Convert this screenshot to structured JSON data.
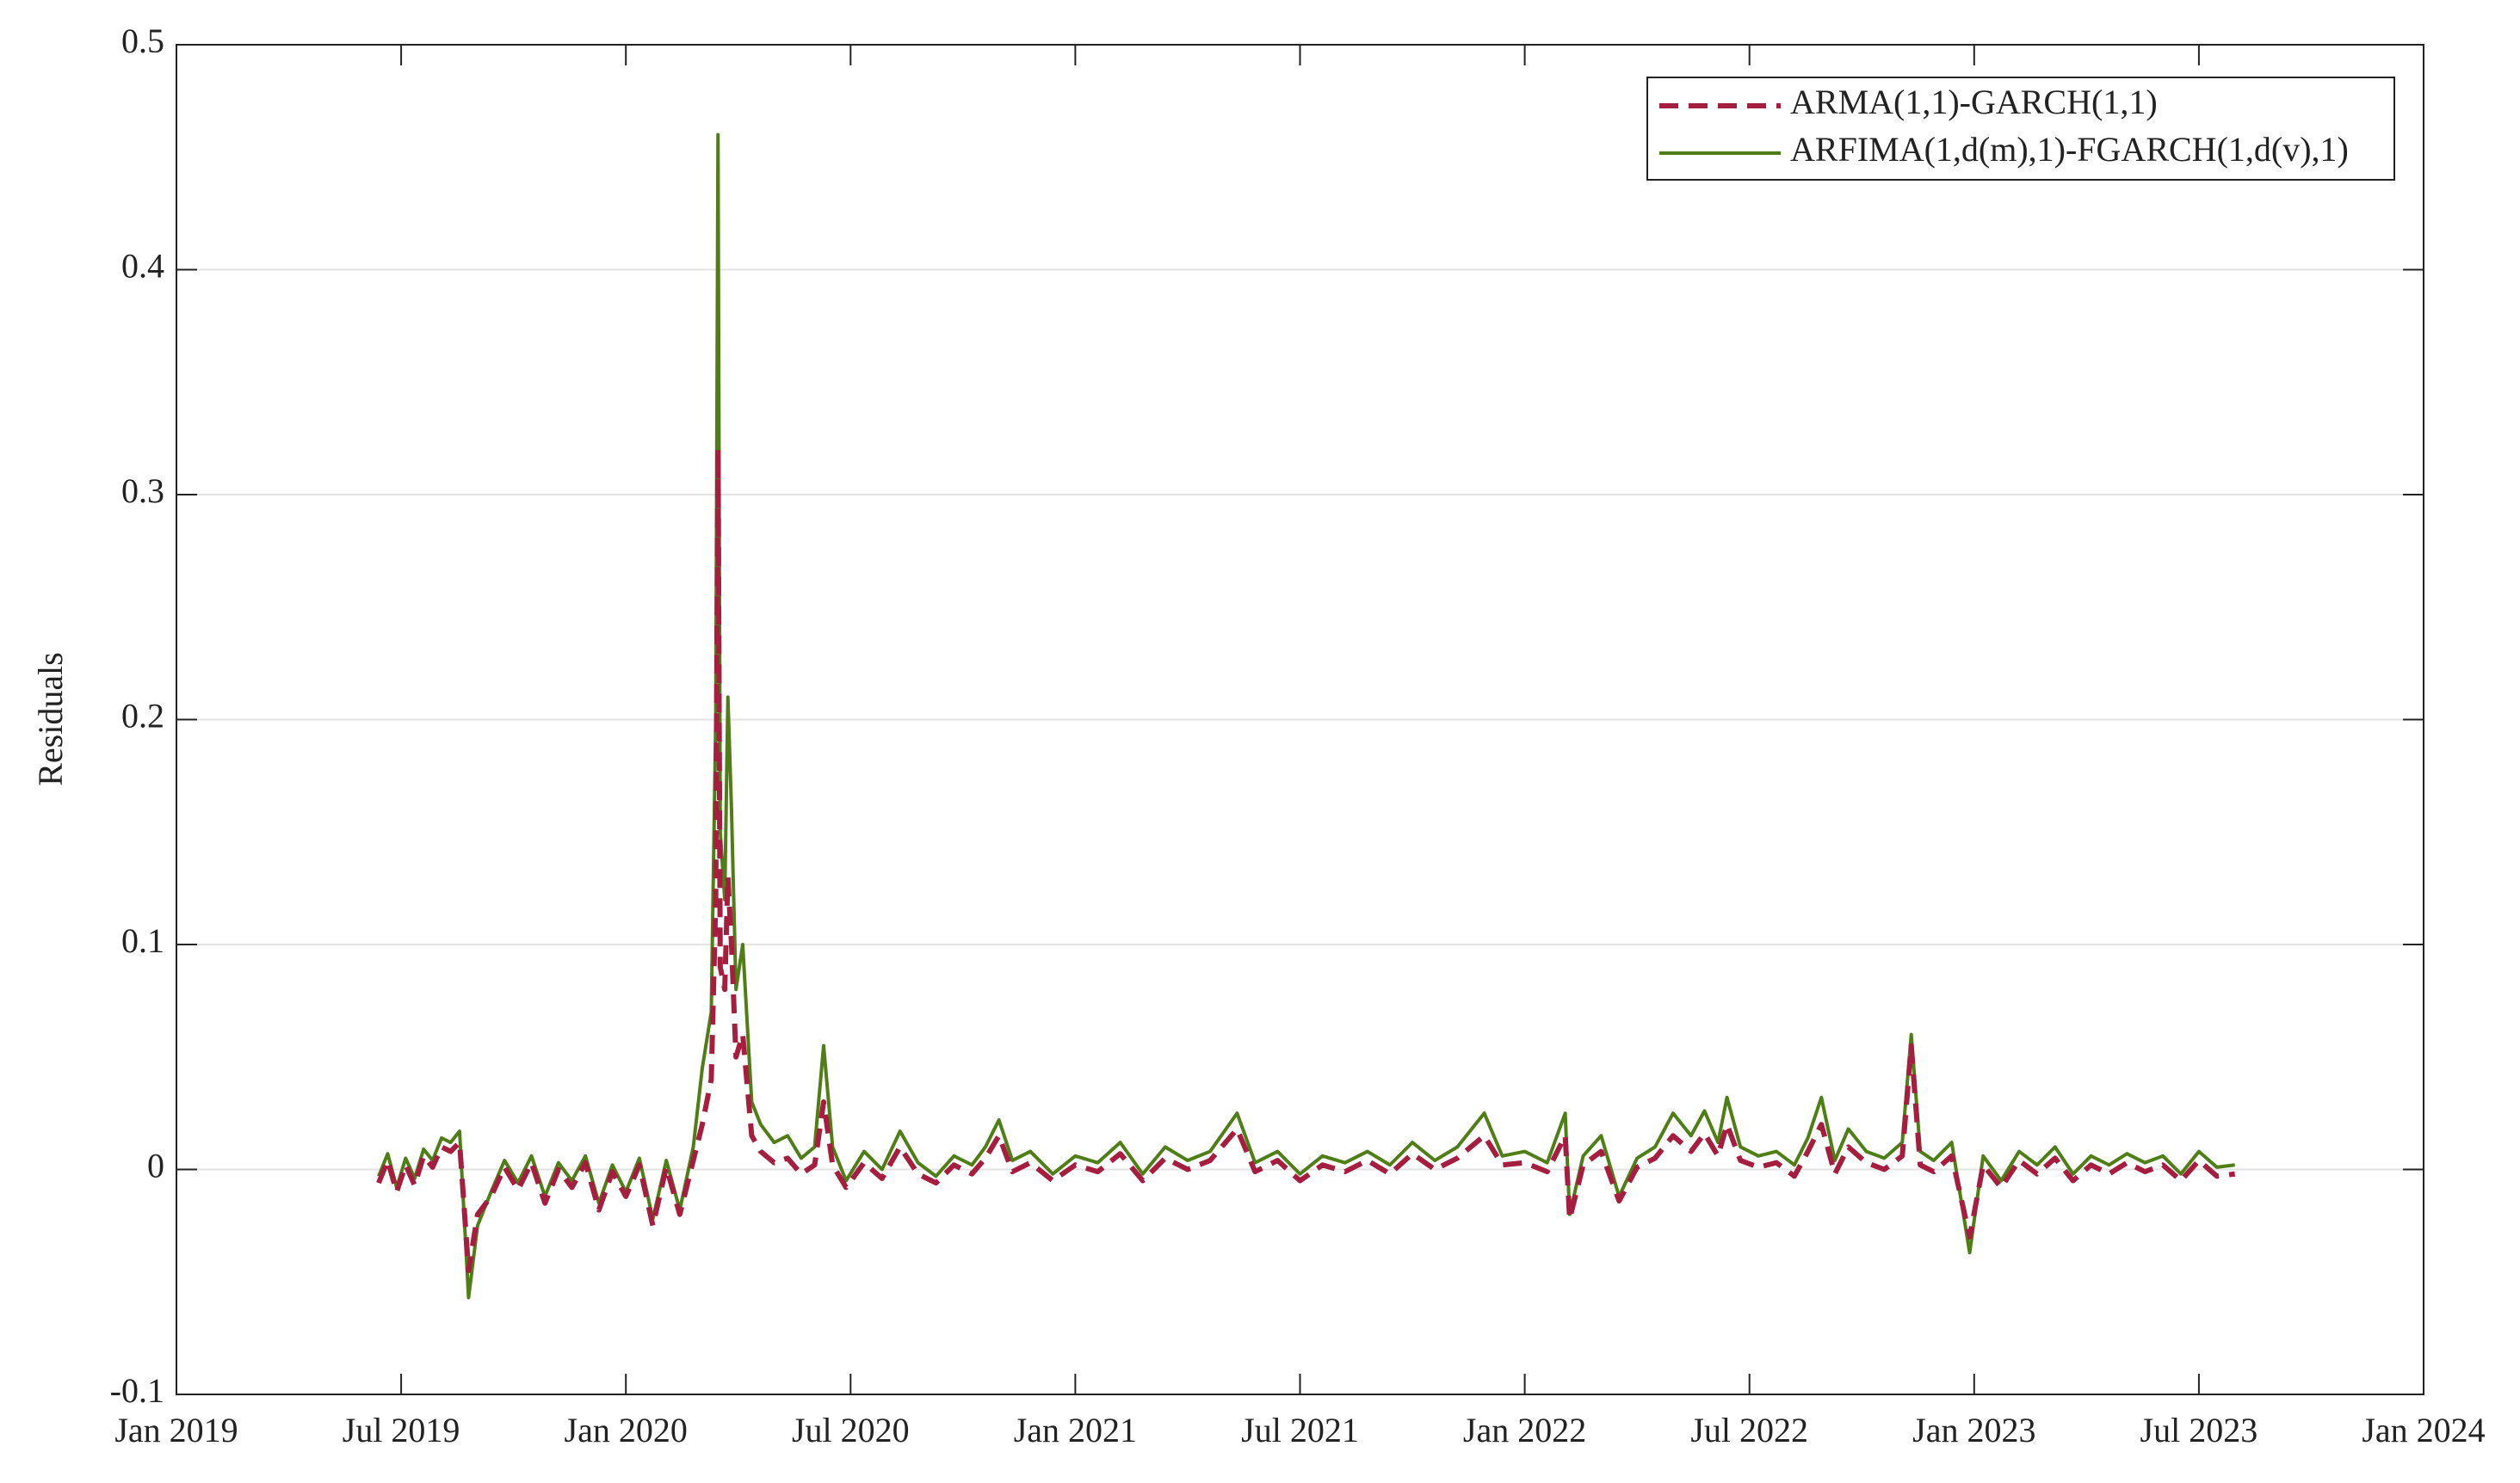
{
  "chart_data": {
    "type": "line",
    "ylabel": "Residuals",
    "xlim": [
      2019,
      2024
    ],
    "xticks": [
      {
        "value": 2019,
        "label": "Jan 2019"
      },
      {
        "value": 2019.5,
        "label": "Jul 2019"
      },
      {
        "value": 2020,
        "label": "Jan 2020"
      },
      {
        "value": 2020.5,
        "label": "Jul 2020"
      },
      {
        "value": 2021,
        "label": "Jan 2021"
      },
      {
        "value": 2021.5,
        "label": "Jul 2021"
      },
      {
        "value": 2022,
        "label": "Jan 2022"
      },
      {
        "value": 2022.5,
        "label": "Jul 2022"
      },
      {
        "value": 2023,
        "label": "Jan 2023"
      },
      {
        "value": 2023.5,
        "label": "Jul 2023"
      },
      {
        "value": 2024,
        "label": "Jan 2024"
      }
    ],
    "ylim": [
      -0.1,
      0.5
    ],
    "yticks": [
      -0.1,
      0,
      0.1,
      0.2,
      0.3,
      0.4,
      0.5
    ],
    "grid": true,
    "legend": "upper right",
    "x": [
      2019.45,
      2019.47,
      2019.49,
      2019.51,
      2019.53,
      2019.55,
      2019.57,
      2019.59,
      2019.61,
      2019.63,
      2019.65,
      2019.67,
      2019.7,
      2019.73,
      2019.76,
      2019.79,
      2019.82,
      2019.85,
      2019.88,
      2019.91,
      2019.94,
      2019.97,
      2020.0,
      2020.03,
      2020.06,
      2020.09,
      2020.12,
      2020.15,
      2020.17,
      2020.19,
      2020.2,
      2020.205,
      2020.21,
      2020.22,
      2020.227,
      2020.235,
      2020.245,
      2020.26,
      2020.28,
      2020.3,
      2020.33,
      2020.36,
      2020.39,
      2020.42,
      2020.44,
      2020.46,
      2020.49,
      2020.53,
      2020.57,
      2020.61,
      2020.65,
      2020.69,
      2020.73,
      2020.77,
      2020.8,
      2020.83,
      2020.86,
      2020.9,
      2020.95,
      2021.0,
      2021.05,
      2021.1,
      2021.15,
      2021.2,
      2021.25,
      2021.3,
      2021.36,
      2021.4,
      2021.45,
      2021.5,
      2021.55,
      2021.6,
      2021.65,
      2021.7,
      2021.75,
      2021.8,
      2021.85,
      2021.91,
      2021.95,
      2022.0,
      2022.05,
      2022.09,
      2022.1,
      2022.13,
      2022.17,
      2022.21,
      2022.25,
      2022.29,
      2022.33,
      2022.37,
      2022.4,
      2022.43,
      2022.45,
      2022.48,
      2022.52,
      2022.56,
      2022.6,
      2022.63,
      2022.66,
      2022.69,
      2022.72,
      2022.76,
      2022.8,
      2022.84,
      2022.86,
      2022.88,
      2022.91,
      2022.95,
      2022.99,
      2023.02,
      2023.06,
      2023.1,
      2023.14,
      2023.18,
      2023.22,
      2023.26,
      2023.3,
      2023.34,
      2023.38,
      2023.42,
      2023.46,
      2023.5,
      2023.54,
      2023.58
    ],
    "series": [
      {
        "name": "ARMA(1,1)-GARCH(1,1)",
        "color": "#a51d3f",
        "dash": true,
        "values": [
          -0.006,
          0.004,
          -0.01,
          0.002,
          -0.007,
          0.006,
          0.001,
          0.01,
          0.008,
          0.012,
          -0.045,
          -0.02,
          -0.012,
          0.001,
          -0.009,
          0.003,
          -0.015,
          0,
          -0.008,
          0.003,
          -0.018,
          -0.001,
          -0.012,
          0.002,
          -0.025,
          0.001,
          -0.02,
          0.004,
          0.02,
          0.04,
          0.12,
          0.32,
          0.09,
          0.08,
          0.13,
          0.1,
          0.05,
          0.06,
          0.015,
          0.008,
          0.003,
          0.005,
          -0.002,
          0.002,
          0.03,
          0.002,
          -0.008,
          0.003,
          -0.004,
          0.01,
          -0.002,
          -0.006,
          0.002,
          -0.002,
          0.005,
          0.015,
          -0.001,
          0.003,
          -0.005,
          0.002,
          -0.001,
          0.007,
          -0.005,
          0.005,
          0,
          0.004,
          0.018,
          -0.001,
          0.004,
          -0.005,
          0.002,
          -0.001,
          0.004,
          -0.002,
          0.007,
          0,
          0.005,
          0.015,
          0.002,
          0.003,
          -0.001,
          0.015,
          -0.022,
          0.002,
          0.008,
          -0.014,
          0.001,
          0.005,
          0.015,
          0.008,
          0.016,
          0.006,
          0.02,
          0.004,
          0.001,
          0.003,
          -0.003,
          0.008,
          0.02,
          -0.002,
          0.01,
          0.003,
          0,
          0.006,
          0.055,
          0.002,
          -0.001,
          0.006,
          -0.03,
          0.002,
          -0.008,
          0.004,
          -0.002,
          0.005,
          -0.005,
          0.002,
          -0.002,
          0.003,
          -0.001,
          0.002,
          -0.005,
          0.004,
          -0.003,
          -0.002
        ]
      },
      {
        "name": "ARFIMA(1,d(m),1)-FGARCH(1,d(v),1)",
        "color": "#4f7d16",
        "dash": false,
        "values": [
          -0.003,
          0.007,
          -0.008,
          0.005,
          -0.004,
          0.009,
          0.004,
          0.014,
          0.012,
          0.017,
          -0.057,
          -0.025,
          -0.01,
          0.004,
          -0.006,
          0.006,
          -0.012,
          0.003,
          -0.005,
          0.006,
          -0.015,
          0.002,
          -0.01,
          0.005,
          -0.022,
          0.004,
          -0.018,
          0.01,
          0.045,
          0.07,
          0.2,
          0.46,
          0.15,
          0.12,
          0.21,
          0.16,
          0.08,
          0.1,
          0.03,
          0.02,
          0.012,
          0.015,
          0.005,
          0.01,
          0.055,
          0.01,
          -0.005,
          0.008,
          0,
          0.017,
          0.003,
          -0.003,
          0.006,
          0.002,
          0.01,
          0.022,
          0.004,
          0.008,
          -0.002,
          0.006,
          0.003,
          0.012,
          -0.002,
          0.01,
          0.004,
          0.008,
          0.025,
          0.003,
          0.008,
          -0.002,
          0.006,
          0.003,
          0.008,
          0.002,
          0.012,
          0.004,
          0.01,
          0.025,
          0.006,
          0.008,
          0.003,
          0.025,
          -0.02,
          0.006,
          0.015,
          -0.012,
          0.005,
          0.01,
          0.025,
          0.015,
          0.026,
          0.012,
          0.032,
          0.01,
          0.006,
          0.008,
          0.002,
          0.014,
          0.032,
          0.004,
          0.018,
          0.008,
          0.005,
          0.012,
          0.06,
          0.008,
          0.004,
          0.012,
          -0.037,
          0.006,
          -0.005,
          0.008,
          0.002,
          0.01,
          -0.002,
          0.006,
          0.002,
          0.007,
          0.003,
          0.006,
          -0.002,
          0.008,
          0.001,
          0.002
        ]
      }
    ]
  }
}
